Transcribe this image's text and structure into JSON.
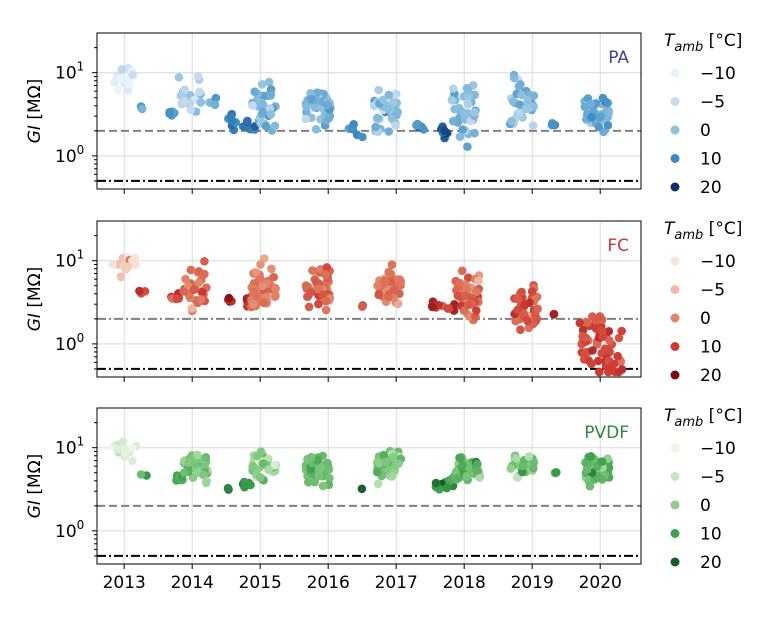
{
  "chart_data": [
    {
      "type": "scatter",
      "panel_label": "PA",
      "label_color": "#3f3f9e",
      "ylabel": "GI [MΩ]",
      "yscale": "log",
      "ylim": [
        0.4,
        30
      ],
      "yticks": [
        {
          "value": 1,
          "label": "10",
          "exp": "0"
        },
        {
          "value": 10,
          "label": "10",
          "exp": "1"
        }
      ],
      "xlim": [
        2012.6,
        2020.6
      ],
      "xticks": [
        "2013",
        "2014",
        "2015",
        "2016",
        "2017",
        "2018",
        "2019",
        "2020"
      ],
      "grid": true,
      "hlines": [
        {
          "y": 2.0,
          "style": "dashed",
          "color": "#808080"
        },
        {
          "y": 0.5,
          "style": "dashdot",
          "color": "#000000"
        }
      ],
      "colorbar": {
        "title": "T",
        "title_sub": "amb",
        "title_unit": " [°C]",
        "entries": [
          {
            "value": "−10",
            "color": "#eaf2fb"
          },
          {
            "value": "−5",
            "color": "#c6dbef"
          },
          {
            "value": "0",
            "color": "#8fc1de"
          },
          {
            "value": "10",
            "color": "#3b8bc2"
          },
          {
            "value": "20",
            "color": "#0a3070"
          }
        ]
      },
      "series_summary": [
        {
          "x": 2013.0,
          "center": 8.0,
          "spread": 0.22,
          "n": 14,
          "temp": -8
        },
        {
          "x": 2013.25,
          "center": 3.9,
          "spread": 0.03,
          "n": 4,
          "temp": 5
        },
        {
          "x": 2013.7,
          "center": 3.3,
          "spread": 0.04,
          "n": 5,
          "temp": 5
        },
        {
          "x": 2013.95,
          "center": 5.5,
          "spread": 0.28,
          "n": 24,
          "temp": -2
        },
        {
          "x": 2014.3,
          "center": 4.4,
          "spread": 0.08,
          "n": 4,
          "temp": 3
        },
        {
          "x": 2014.55,
          "center": 3.0,
          "spread": 0.05,
          "n": 3,
          "temp": 12
        },
        {
          "x": 2014.75,
          "center": 2.3,
          "spread": 0.1,
          "n": 14,
          "temp": 13
        },
        {
          "x": 2015.05,
          "center": 3.8,
          "spread": 0.26,
          "n": 36,
          "temp": 2
        },
        {
          "x": 2015.85,
          "center": 4.0,
          "spread": 0.26,
          "n": 38,
          "temp": 3
        },
        {
          "x": 2016.35,
          "center": 2.3,
          "spread": 0.08,
          "n": 4,
          "temp": 10
        },
        {
          "x": 2016.45,
          "center": 1.75,
          "spread": 0.03,
          "n": 2,
          "temp": 15
        },
        {
          "x": 2016.85,
          "center": 3.6,
          "spread": 0.26,
          "n": 40,
          "temp": -1
        },
        {
          "x": 2017.35,
          "center": 2.4,
          "spread": 0.06,
          "n": 5,
          "temp": 10
        },
        {
          "x": 2017.7,
          "center": 2.0,
          "spread": 0.06,
          "n": 10,
          "temp": 14
        },
        {
          "x": 2018.0,
          "center": 3.5,
          "spread": 0.26,
          "n": 40,
          "temp": 2
        },
        {
          "x": 2018.85,
          "center": 4.2,
          "spread": 0.26,
          "n": 36,
          "temp": 2
        },
        {
          "x": 2019.3,
          "center": 2.3,
          "spread": 0.05,
          "n": 3,
          "temp": 8
        },
        {
          "x": 2019.95,
          "center": 3.3,
          "spread": 0.22,
          "n": 42,
          "temp": 4
        }
      ]
    },
    {
      "type": "scatter",
      "panel_label": "FC",
      "label_color": "#c8383a",
      "ylabel": "GI [MΩ]",
      "yscale": "log",
      "ylim": [
        0.4,
        30
      ],
      "yticks": [
        {
          "value": 1,
          "label": "10",
          "exp": "0"
        },
        {
          "value": 10,
          "label": "10",
          "exp": "1"
        }
      ],
      "xlim": [
        2012.6,
        2020.6
      ],
      "xticks": [
        "2013",
        "2014",
        "2015",
        "2016",
        "2017",
        "2018",
        "2019",
        "2020"
      ],
      "grid": true,
      "hlines": [
        {
          "y": 2.0,
          "style": "dashdot",
          "color": "#808080"
        },
        {
          "y": 0.5,
          "style": "dashdot",
          "color": "#000000"
        }
      ],
      "colorbar": {
        "title": "T",
        "title_sub": "amb",
        "title_unit": " [°C]",
        "entries": [
          {
            "value": "−10",
            "color": "#f7e4da"
          },
          {
            "value": "−5",
            "color": "#efb9a2"
          },
          {
            "value": "0",
            "color": "#e08568"
          },
          {
            "value": "10",
            "color": "#cf3b33"
          },
          {
            "value": "20",
            "color": "#730f16"
          }
        ]
      },
      "series_summary": [
        {
          "x": 2013.0,
          "center": 8.3,
          "spread": 0.15,
          "n": 14,
          "temp": -7
        },
        {
          "x": 2013.25,
          "center": 4.2,
          "spread": 0.03,
          "n": 3,
          "temp": 8
        },
        {
          "x": 2013.75,
          "center": 3.6,
          "spread": 0.08,
          "n": 6,
          "temp": 10
        },
        {
          "x": 2014.05,
          "center": 5.0,
          "spread": 0.24,
          "n": 30,
          "temp": 3
        },
        {
          "x": 2014.55,
          "center": 3.4,
          "spread": 0.03,
          "n": 4,
          "temp": 16
        },
        {
          "x": 2014.8,
          "center": 3.2,
          "spread": 0.06,
          "n": 8,
          "temp": 11
        },
        {
          "x": 2015.05,
          "center": 4.6,
          "spread": 0.26,
          "n": 48,
          "temp": 0
        },
        {
          "x": 2015.85,
          "center": 4.5,
          "spread": 0.22,
          "n": 44,
          "temp": 4
        },
        {
          "x": 2016.45,
          "center": 2.8,
          "spread": 0.03,
          "n": 2,
          "temp": 9
        },
        {
          "x": 2016.9,
          "center": 4.7,
          "spread": 0.22,
          "n": 44,
          "temp": 3
        },
        {
          "x": 2017.7,
          "center": 2.9,
          "spread": 0.06,
          "n": 12,
          "temp": 13
        },
        {
          "x": 2018.05,
          "center": 3.8,
          "spread": 0.26,
          "n": 44,
          "temp": 4
        },
        {
          "x": 2018.9,
          "center": 2.5,
          "spread": 0.3,
          "n": 40,
          "temp": 5
        },
        {
          "x": 2019.35,
          "center": 2.3,
          "spread": 0.04,
          "n": 2,
          "temp": 12
        },
        {
          "x": 2019.85,
          "center": 1.1,
          "spread": 0.3,
          "n": 32,
          "temp": 8
        },
        {
          "x": 2020.15,
          "center": 0.75,
          "spread": 0.4,
          "n": 28,
          "temp": 9
        }
      ]
    },
    {
      "type": "scatter",
      "panel_label": "PVDF",
      "label_color": "#2a8a3a",
      "ylabel": "GI [MΩ]",
      "yscale": "log",
      "ylim": [
        0.4,
        30
      ],
      "yticks": [
        {
          "value": 1,
          "label": "10",
          "exp": "0"
        },
        {
          "value": 10,
          "label": "10",
          "exp": "1"
        }
      ],
      "xlim": [
        2012.6,
        2020.6
      ],
      "xticks": [
        "2013",
        "2014",
        "2015",
        "2016",
        "2017",
        "2018",
        "2019",
        "2020"
      ],
      "grid": true,
      "hlines": [
        {
          "y": 2.0,
          "style": "dashed",
          "color": "#808080"
        },
        {
          "y": 0.5,
          "style": "dashdot",
          "color": "#000000"
        }
      ],
      "colorbar": {
        "title": "T",
        "title_sub": "amb",
        "title_unit": " [°C]",
        "entries": [
          {
            "value": "−10",
            "color": "#eef6ea"
          },
          {
            "value": "−5",
            "color": "#c9e6c2"
          },
          {
            "value": "0",
            "color": "#8ecf8a"
          },
          {
            "value": "10",
            "color": "#3ea14d"
          },
          {
            "value": "20",
            "color": "#175c2d"
          }
        ]
      },
      "series_summary": [
        {
          "x": 2013.0,
          "center": 9.5,
          "spread": 0.12,
          "n": 14,
          "temp": -8
        },
        {
          "x": 2013.3,
          "center": 4.7,
          "spread": 0.02,
          "n": 2,
          "temp": 8
        },
        {
          "x": 2013.8,
          "center": 4.2,
          "spread": 0.06,
          "n": 8,
          "temp": 10
        },
        {
          "x": 2014.05,
          "center": 6.0,
          "spread": 0.16,
          "n": 34,
          "temp": 2
        },
        {
          "x": 2014.55,
          "center": 3.2,
          "spread": 0.02,
          "n": 2,
          "temp": 18
        },
        {
          "x": 2014.8,
          "center": 3.6,
          "spread": 0.06,
          "n": 8,
          "temp": 12
        },
        {
          "x": 2015.05,
          "center": 6.0,
          "spread": 0.16,
          "n": 40,
          "temp": 0
        },
        {
          "x": 2015.85,
          "center": 5.5,
          "spread": 0.18,
          "n": 42,
          "temp": 4
        },
        {
          "x": 2016.45,
          "center": 3.2,
          "spread": 0.02,
          "n": 1,
          "temp": 18
        },
        {
          "x": 2016.9,
          "center": 6.2,
          "spread": 0.16,
          "n": 46,
          "temp": 2
        },
        {
          "x": 2017.7,
          "center": 3.8,
          "spread": 0.08,
          "n": 12,
          "temp": 14
        },
        {
          "x": 2018.05,
          "center": 5.4,
          "spread": 0.16,
          "n": 42,
          "temp": 4
        },
        {
          "x": 2018.85,
          "center": 6.3,
          "spread": 0.14,
          "n": 30,
          "temp": 2
        },
        {
          "x": 2019.3,
          "center": 5.0,
          "spread": 0.02,
          "n": 2,
          "temp": 10
        },
        {
          "x": 2019.95,
          "center": 5.4,
          "spread": 0.16,
          "n": 44,
          "temp": 6
        }
      ]
    }
  ]
}
